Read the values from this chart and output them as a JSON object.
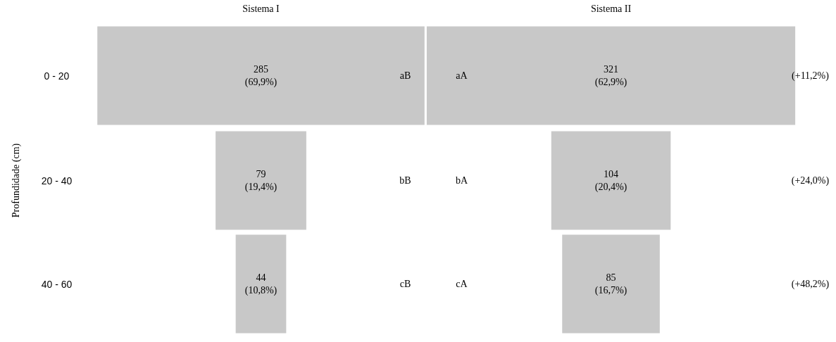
{
  "chart_data": {
    "type": "other",
    "ylabel": "Profundidade (cm)",
    "categories": [
      "0 - 20",
      "20 - 40",
      "40 - 60"
    ],
    "series": [
      {
        "name": "Sistema I",
        "color": "#c8c8c8",
        "values": [
          285,
          79,
          44
        ],
        "value_labels": [
          "285\n(69,9%)",
          "79\n(19,4%)",
          "44\n(10,8%)"
        ]
      },
      {
        "name": "Sistema II",
        "color": "#c8c8c8",
        "values": [
          321,
          104,
          85
        ],
        "value_labels": [
          "321\n(62,9%)",
          "104\n(20,4%)",
          "85\n(16,7%)"
        ]
      }
    ],
    "annotations": [
      {
        "text": "aB",
        "y": "0 - 20"
      },
      {
        "text": "bB",
        "y": "20 - 40"
      },
      {
        "text": "cB",
        "y": "40 - 60"
      },
      {
        "text": "aA",
        "y": "0 - 20"
      },
      {
        "text": "bA",
        "y": "20 - 40"
      },
      {
        "text": "cA",
        "y": "40 - 60"
      },
      {
        "text": "(+11,2%)",
        "y": "0 - 20"
      },
      {
        "text": "(+24,0%)",
        "y": "20 - 40"
      },
      {
        "text": "(+48,2%)",
        "y": "40 - 60"
      }
    ]
  }
}
